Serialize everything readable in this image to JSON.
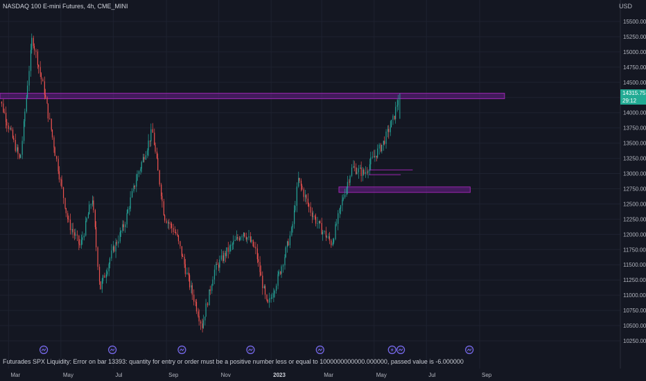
{
  "header": {
    "title": "NASDAQ 100 E-mini Futures, 4h, CME_MINI",
    "currency": "USD"
  },
  "last_price": {
    "price": "14315.75",
    "countdown": "29:12"
  },
  "error_message": "Futurades SPX Liquidity: Error on bar 13393: quantity for entry or order must be a positive number less or equal to 1000000000000.000000, passed value is -6.000000",
  "colors": {
    "background": "#141722",
    "grid": "#1e2230",
    "up": "#26a69a",
    "down": "#ef5350",
    "zone_fill": "#7b1fa2",
    "zone_border": "#9c27b0",
    "price_tag": "#22ab94",
    "event_icon": "#7b6cf6"
  },
  "chart_data": {
    "type": "candlestick",
    "symbol": "NASDAQ 100 E-mini Futures",
    "interval": "4h",
    "exchange": "CME_MINI",
    "x_labels": [
      "Mar",
      "May",
      "Jul",
      "Sep",
      "Nov",
      "2023",
      "Mar",
      "May",
      "Jul",
      "Sep"
    ],
    "y_ticks": [
      10250,
      10500,
      10750,
      11000,
      11250,
      11500,
      11750,
      12000,
      12250,
      12500,
      12750,
      13000,
      13250,
      13500,
      13750,
      14000,
      14250,
      14500,
      14750,
      15000,
      15250,
      15500
    ],
    "y_tick_labels": [
      "10250.00",
      "10500.00",
      "10750.00",
      "11000.00",
      "11250.00",
      "11500.00",
      "11750.00",
      "12000.00",
      "12250.00",
      "12500.00",
      "12750.00",
      "13000.00",
      "13250.00",
      "13500.00",
      "13750.00",
      "14000.00",
      "14250.00",
      "14500.00",
      "14750.00",
      "15000.00",
      "15250.00",
      "15500.00"
    ],
    "ylim": [
      10100,
      15800
    ],
    "price_path": [
      {
        "date": "2022-02-15",
        "price": 14400
      },
      {
        "date": "2022-03-01",
        "price": 13800
      },
      {
        "date": "2022-03-15",
        "price": 13200
      },
      {
        "date": "2022-03-29",
        "price": 15250
      },
      {
        "date": "2022-04-12",
        "price": 14350
      },
      {
        "date": "2022-04-26",
        "price": 13250
      },
      {
        "date": "2022-05-10",
        "price": 12200
      },
      {
        "date": "2022-05-24",
        "price": 11800
      },
      {
        "date": "2022-06-07",
        "price": 12600
      },
      {
        "date": "2022-06-16",
        "price": 11100
      },
      {
        "date": "2022-06-30",
        "price": 11700
      },
      {
        "date": "2022-07-14",
        "price": 12150
      },
      {
        "date": "2022-07-28",
        "price": 12900
      },
      {
        "date": "2022-08-16",
        "price": 13700
      },
      {
        "date": "2022-08-30",
        "price": 12300
      },
      {
        "date": "2022-09-13",
        "price": 12000
      },
      {
        "date": "2022-09-28",
        "price": 11200
      },
      {
        "date": "2022-10-13",
        "price": 10500
      },
      {
        "date": "2022-10-27",
        "price": 11400
      },
      {
        "date": "2022-11-10",
        "price": 11700
      },
      {
        "date": "2022-11-30",
        "price": 12050
      },
      {
        "date": "2022-12-14",
        "price": 11750
      },
      {
        "date": "2022-12-28",
        "price": 10800
      },
      {
        "date": "2023-01-12",
        "price": 11400
      },
      {
        "date": "2023-01-26",
        "price": 12100
      },
      {
        "date": "2023-02-02",
        "price": 12900
      },
      {
        "date": "2023-02-16",
        "price": 12400
      },
      {
        "date": "2023-02-28",
        "price": 12100
      },
      {
        "date": "2023-03-13",
        "price": 11850
      },
      {
        "date": "2023-03-28",
        "price": 12700
      },
      {
        "date": "2023-04-06",
        "price": 13100
      },
      {
        "date": "2023-04-20",
        "price": 13000
      },
      {
        "date": "2023-04-28",
        "price": 13200
      },
      {
        "date": "2023-05-12",
        "price": 13500
      },
      {
        "date": "2023-05-24",
        "price": 13900
      },
      {
        "date": "2023-05-31",
        "price": 14315.75
      }
    ],
    "zones": [
      {
        "top": 14320,
        "bottom": 14230,
        "from": "2022-02-15",
        "to": "2023-09-30"
      },
      {
        "top": 12780,
        "bottom": 12690,
        "from": "2023-03-21",
        "to": "2023-08-21"
      }
    ],
    "levels": [
      {
        "price": 13060,
        "from": "2023-04-25",
        "to": "2023-06-15"
      },
      {
        "price": 12980,
        "from": "2023-04-25",
        "to": "2023-06-01"
      }
    ],
    "event_markers": [
      "2022-04-11",
      "2022-06-30",
      "2022-09-19",
      "2022-12-08",
      "2023-02-27",
      "2023-05-22",
      "2023-06-01",
      "2023-08-20"
    ]
  }
}
